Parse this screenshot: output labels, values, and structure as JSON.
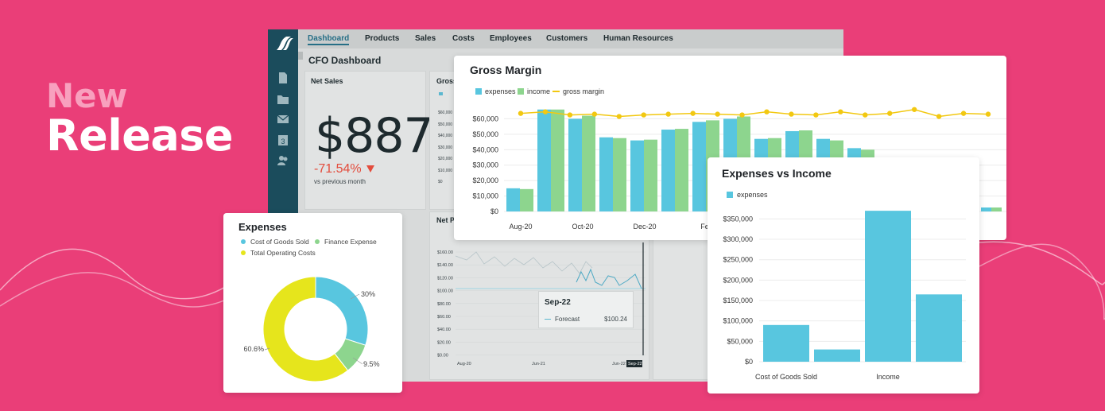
{
  "headline": {
    "new": "New",
    "release": "Release"
  },
  "colors": {
    "background": "#ea3e78",
    "expenses": "#58c6df",
    "income": "#8dd58e",
    "gross_margin": "#f2c811",
    "yellow": "#e6e51c",
    "sidebar": "#1b4c5c"
  },
  "dashboard": {
    "nav": [
      "Dashboard",
      "Products",
      "Sales",
      "Costs",
      "Employees",
      "Customers",
      "Human Resources"
    ],
    "active_tab": "Dashboard",
    "title": "CFO Dashboard",
    "net_sales": {
      "title": "Net Sales",
      "value": "$887",
      "change": "-71.54%",
      "change_icon": "triangle-down-icon",
      "caption": "vs previous month"
    },
    "gross_margin_panel_title": "Gross",
    "gross_axis": [
      "$60,000",
      "$50,000",
      "$40,000",
      "$30,000",
      "$20,000",
      "$10,000",
      "$0"
    ],
    "net_profit_panel_title": "Net P",
    "net_axis": [
      "$160.00",
      "$140.00",
      "$120.00",
      "$100.00",
      "$80.00",
      "$60.00",
      "$40.00",
      "$20.00",
      "$0.00"
    ],
    "net_x": [
      "Aug-20",
      "Jun-21",
      "Jun-22",
      "Sep-22"
    ],
    "side_axis": [
      "$350,000",
      "$300,000",
      "$250,000",
      "$200,000",
      "$150,000",
      "$100,000",
      "$50,000",
      "$0"
    ],
    "side_x": "Cost of Gd",
    "tooltip": {
      "title": "Sep-22",
      "label": "Forecast",
      "value": "$100.24"
    }
  },
  "expenses_card": {
    "title": "Expenses",
    "legend": [
      {
        "name": "Cost of Goods Sold",
        "color": "#58c6df"
      },
      {
        "name": "Finance Expense",
        "color": "#8dd58e"
      },
      {
        "name": "Total Operating Costs",
        "color": "#e6e51c"
      }
    ]
  },
  "gross_margin_card": {
    "title": "Gross Margin",
    "legend": [
      "expenses",
      "income",
      "gross margin"
    ]
  },
  "expenses_income_card": {
    "title": "Expenses vs Income",
    "legend": [
      "expenses"
    ]
  },
  "chart_data": [
    {
      "type": "pie",
      "title": "Expenses",
      "categories": [
        "Cost of Goods Sold",
        "Finance Expense",
        "Total Operating Costs"
      ],
      "values": [
        30,
        9.5,
        60.6
      ],
      "labels": [
        "30%",
        "9.5%",
        "60.6%"
      ],
      "donut": true
    },
    {
      "type": "bar",
      "title": "Gross Margin",
      "y_ticks": [
        "$60,000",
        "$50,000",
        "$40,000",
        "$30,000",
        "$20,000",
        "$10,000",
        "$0"
      ],
      "ylim": [
        0,
        70000
      ],
      "x_tick_labels": [
        "Aug-20",
        "Oct-20",
        "Dec-20",
        "Feb"
      ],
      "series": [
        {
          "name": "expenses",
          "values": [
            15000,
            66000,
            60000,
            48000,
            46000,
            53000,
            58000,
            60000,
            47000,
            52000,
            47000,
            41000
          ]
        },
        {
          "name": "income",
          "values": [
            14500,
            66000,
            62000,
            47500,
            46500,
            53500,
            59000,
            61500,
            47500,
            52500,
            46000,
            40000
          ]
        },
        {
          "name": "gross margin",
          "type": "line",
          "values": [
            63500,
            64500,
            62500,
            63000,
            61500,
            62500,
            63000,
            63500,
            63000,
            62500,
            64500,
            63000,
            62500,
            64500,
            62500,
            63500,
            66000,
            61500,
            63500,
            63000
          ]
        }
      ],
      "grid": true,
      "legend": "top-left"
    },
    {
      "type": "bar",
      "title": "Expenses vs Income",
      "categories": [
        "Cost of Goods Sold",
        "",
        "Income",
        ""
      ],
      "y_ticks": [
        "$350,000",
        "$300,000",
        "$250,000",
        "$200,000",
        "$150,000",
        "$100,000",
        "$50,000",
        "$0"
      ],
      "ylim": [
        0,
        380000
      ],
      "series": [
        {
          "name": "expenses",
          "values": [
            90000,
            30000,
            370000,
            165000
          ]
        }
      ],
      "grid": true,
      "legend": "top-left"
    }
  ]
}
